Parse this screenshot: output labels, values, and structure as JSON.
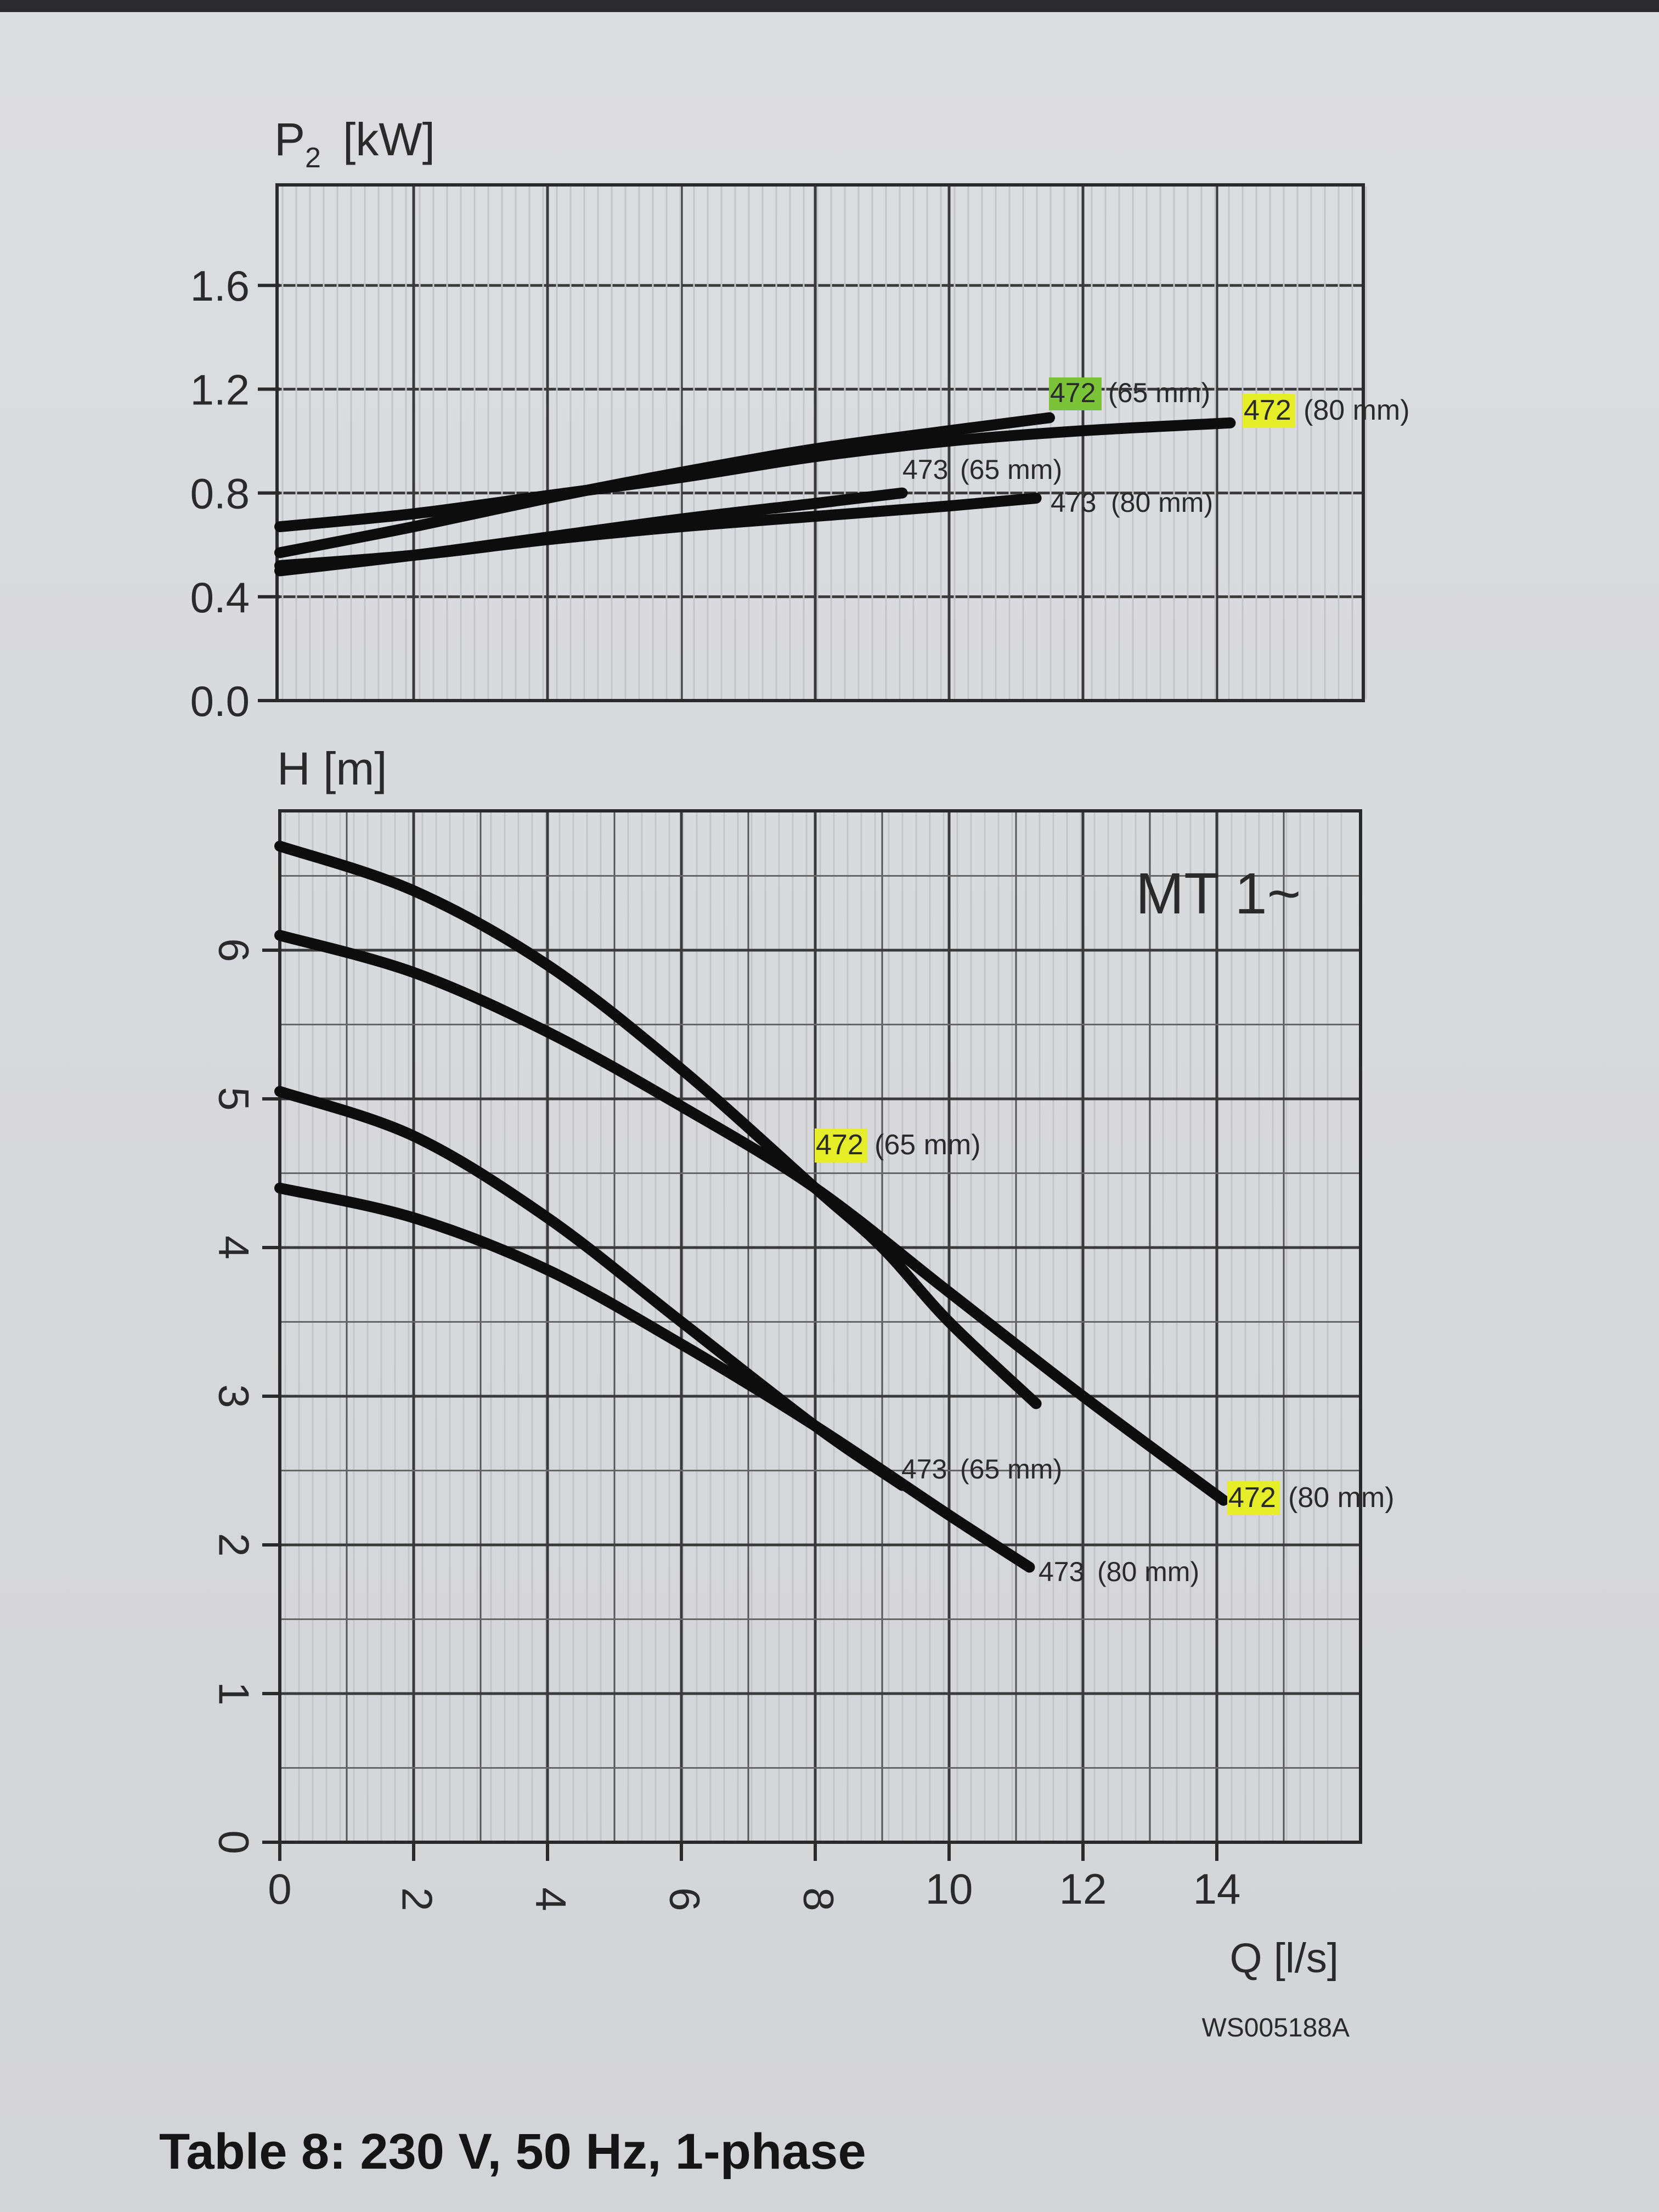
{
  "caption": "Table 8: 230 V, 50 Hz, 1-phase",
  "drawing_code": "WS005188A",
  "model_label": "MT 1~",
  "colors": {
    "highlight": "#e6ee2a",
    "highlight_selected": "#7bc43a",
    "curve": "#0d0d0d"
  },
  "chart_data": [
    {
      "type": "line",
      "ylabel": "P2 [kW]",
      "ylabel_main": "P",
      "ylabel_sub": "2",
      "ylabel_unit": "[kW]",
      "xlim": [
        0,
        16
      ],
      "ylim": [
        0,
        2.0
      ],
      "yticks": [
        0.0,
        0.4,
        0.8,
        1.2,
        1.6
      ],
      "ytick_labels": [
        "0.0",
        "0.4",
        "0.8",
        "1.2",
        "1.6"
      ],
      "grid": true,
      "series": [
        {
          "name": "472 (65 mm)",
          "model": "472",
          "size": "(65 mm)",
          "x": [
            0,
            2,
            4,
            6,
            8,
            10,
            11.5
          ],
          "y": [
            0.57,
            0.67,
            0.78,
            0.88,
            0.97,
            1.04,
            1.09
          ]
        },
        {
          "name": "472 (80 mm)",
          "model": "472",
          "size": "(80 mm)",
          "x": [
            0,
            2,
            4,
            6,
            8,
            10,
            12,
            14.2
          ],
          "y": [
            0.67,
            0.72,
            0.79,
            0.86,
            0.94,
            1.0,
            1.04,
            1.07
          ]
        },
        {
          "name": "473 (65 mm)",
          "model": "473",
          "size": "(65 mm)",
          "x": [
            0,
            2,
            4,
            6,
            8,
            9.3
          ],
          "y": [
            0.5,
            0.56,
            0.63,
            0.7,
            0.76,
            0.8
          ]
        },
        {
          "name": "473 (80 mm)",
          "model": "473",
          "size": "(80 mm)",
          "x": [
            0,
            2,
            4,
            6,
            8,
            10,
            11.3
          ],
          "y": [
            0.52,
            0.56,
            0.62,
            0.67,
            0.71,
            0.75,
            0.78
          ]
        }
      ]
    },
    {
      "type": "line",
      "ylabel": "H [m]",
      "xlabel": "Q [l/s]",
      "xlim": [
        0,
        16
      ],
      "ylim": [
        0,
        7
      ],
      "xticks": [
        0,
        2,
        4,
        6,
        8,
        10,
        12,
        14
      ],
      "xtick_labels": [
        "0",
        "2",
        "4",
        "6",
        "8",
        "10",
        "12",
        "14"
      ],
      "yticks": [
        0,
        1,
        2,
        3,
        4,
        5,
        6
      ],
      "ytick_labels": [
        "0",
        "1",
        "2",
        "3",
        "4",
        "5",
        "6"
      ],
      "grid": true,
      "series": [
        {
          "name": "472 (65 mm)",
          "model": "472",
          "size": "(65 mm)",
          "x": [
            0,
            2,
            4,
            6,
            8,
            9,
            10,
            11.3
          ],
          "y": [
            6.7,
            6.4,
            5.9,
            5.2,
            4.4,
            4.0,
            3.5,
            2.95
          ]
        },
        {
          "name": "472 (80 mm)",
          "model": "472",
          "size": "(80 mm)",
          "x": [
            0,
            2,
            4,
            6,
            8,
            10,
            12,
            14.1
          ],
          "y": [
            6.1,
            5.85,
            5.45,
            4.95,
            4.4,
            3.7,
            3.0,
            2.3
          ]
        },
        {
          "name": "473 (65 mm)",
          "model": "473",
          "size": "(65 mm)",
          "x": [
            0,
            2,
            4,
            6,
            8,
            9.3
          ],
          "y": [
            5.05,
            4.75,
            4.2,
            3.5,
            2.8,
            2.4
          ]
        },
        {
          "name": "473 (80 mm)",
          "model": "473",
          "size": "(80 mm)",
          "x": [
            0,
            2,
            4,
            6,
            8,
            10,
            11.2
          ],
          "y": [
            4.4,
            4.2,
            3.85,
            3.35,
            2.8,
            2.2,
            1.85
          ]
        }
      ]
    }
  ]
}
